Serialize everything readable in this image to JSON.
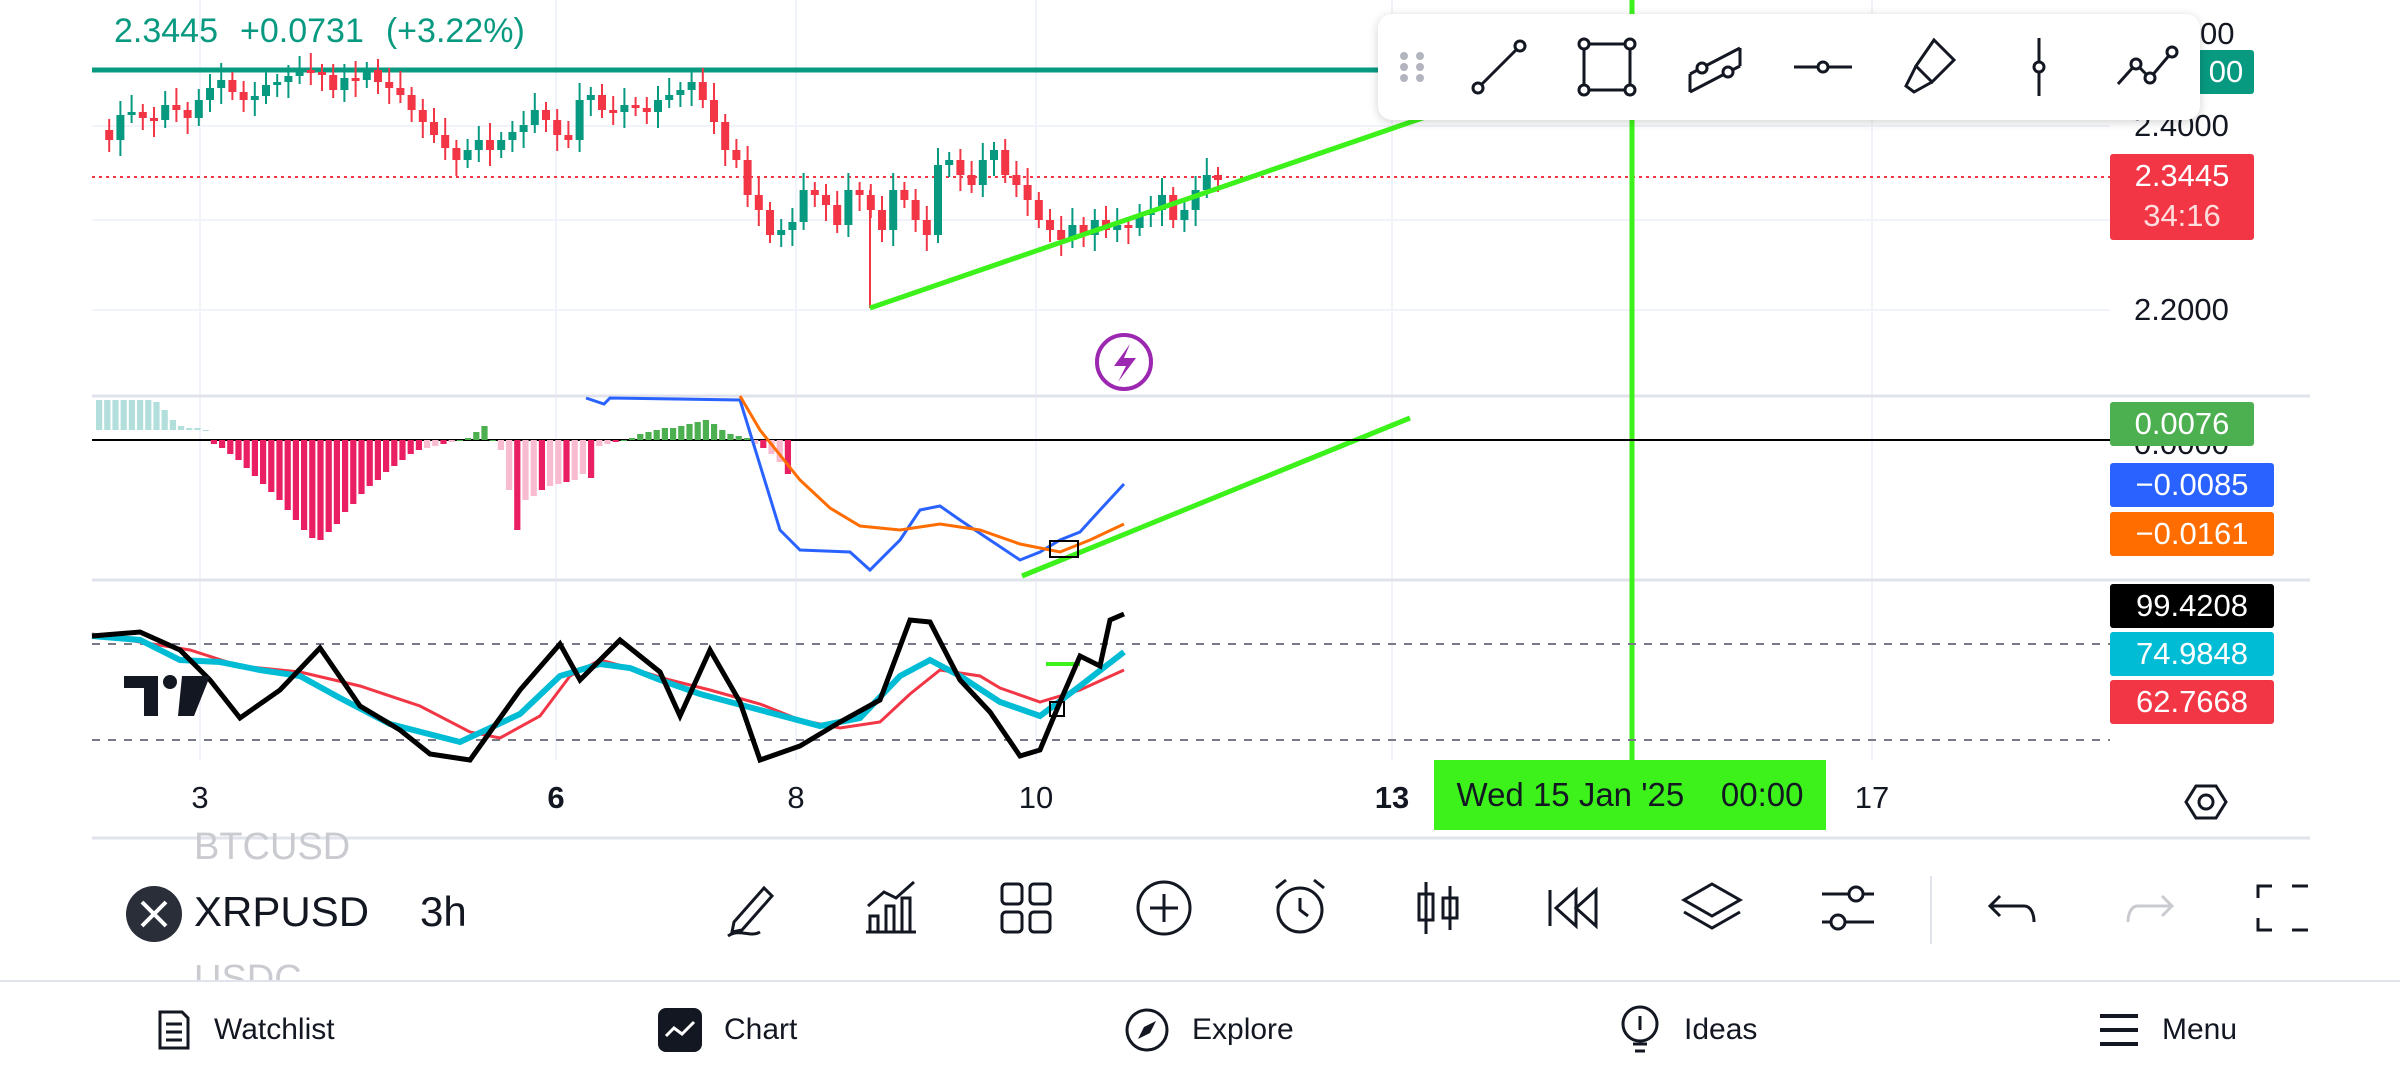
{
  "header": {
    "last_price": "2.3445",
    "change": "+0.0731",
    "change_pct": "(+3.22%)"
  },
  "price_axis": {
    "labels": [
      "2.4000",
      "2.2000"
    ],
    "partial_top": "00",
    "partial_top_tag": "00"
  },
  "price_tag": {
    "price": "2.3445",
    "countdown": "34:16"
  },
  "macd_tags": {
    "histogram": "0.0076",
    "macd": "−0.0085",
    "signal": "−0.0161",
    "hidden_zero": "0.0000"
  },
  "stoch_tags": {
    "value_1": "99.4208",
    "value_2": "74.9848",
    "value_3": "62.7668"
  },
  "date_axis": {
    "labels": [
      {
        "text": "3",
        "bold": false
      },
      {
        "text": "6",
        "bold": true
      },
      {
        "text": "8",
        "bold": false
      },
      {
        "text": "10",
        "bold": false
      },
      {
        "text": "13",
        "bold": true
      },
      {
        "text": "17",
        "bold": false
      }
    ],
    "crosshair_date": "Wed 15 Jan '25",
    "crosshair_time": "00:00"
  },
  "drawing_toolbar": {
    "tools": [
      "drag-handle-icon",
      "trend-line-icon",
      "rectangle-icon",
      "parallel-channel-icon",
      "horizontal-ray-icon",
      "brush-icon",
      "vertical-line-icon",
      "path-icon"
    ]
  },
  "symbol": {
    "name": "XRPUSD",
    "interval": "3h",
    "prev_symbol": "BTCUSD",
    "next_symbol": "USDC"
  },
  "chart_toolbar": {
    "tools": [
      "drawing-pen-icon",
      "indicators-icon",
      "layouts-icon",
      "add-icon",
      "alert-icon",
      "chart-type-icon",
      "replay-icon",
      "layers-icon",
      "settings-sliders-icon",
      "undo-icon",
      "redo-icon",
      "fullscreen-icon"
    ]
  },
  "nav": {
    "items": [
      {
        "label": "Watchlist",
        "icon": "watchlist-icon"
      },
      {
        "label": "Chart",
        "icon": "chart-icon"
      },
      {
        "label": "Explore",
        "icon": "compass-icon"
      },
      {
        "label": "Ideas",
        "icon": "lightbulb-icon"
      },
      {
        "label": "Menu",
        "icon": "hamburger-icon"
      }
    ]
  },
  "colors": {
    "up": "#089981",
    "down": "#f23645",
    "drawing": "#3cf21a",
    "macd_line": "#2962ff",
    "signal_line": "#ff6d00",
    "hist_pos": "#4caf50",
    "hist_neg": "#e91e63",
    "stoch_cyan": "#00bcd4",
    "stoch_red": "#f23645",
    "stoch_black": "#000000"
  }
}
